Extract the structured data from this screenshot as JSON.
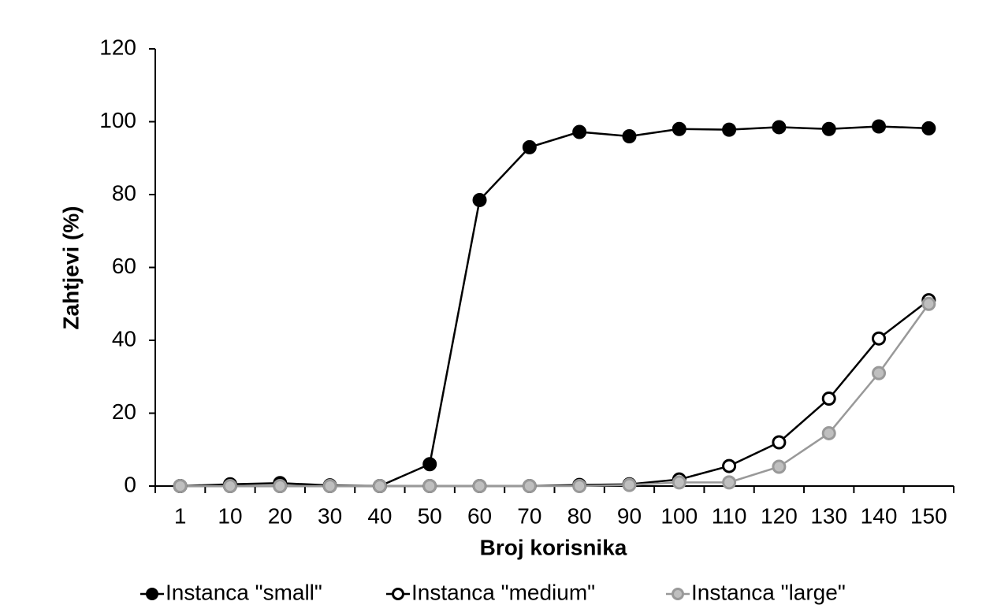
{
  "chart_data": {
    "type": "line",
    "x_label": "Broj korisnika",
    "y_label": "Zahtjevi (%)",
    "categories": [
      "1",
      "10",
      "20",
      "30",
      "40",
      "50",
      "60",
      "70",
      "80",
      "90",
      "100",
      "110",
      "120",
      "130",
      "140",
      "150"
    ],
    "series": [
      {
        "name": "Instanca \"small\"",
        "color": "#000000",
        "marker_fill": "#000000",
        "values": [
          0,
          0.5,
          0.8,
          0.2,
          0,
          6,
          78.5,
          93,
          97.2,
          96,
          98,
          97.8,
          98.5,
          98,
          98.7,
          98.2
        ]
      },
      {
        "name": "Instanca \"medium\"",
        "color": "#000000",
        "marker_fill": "#ffffff",
        "values": [
          0,
          0,
          0,
          0,
          0,
          0,
          0,
          0,
          0.3,
          0.5,
          1.8,
          5.5,
          12,
          24,
          40.5,
          51
        ]
      },
      {
        "name": "Instanca \"large\"",
        "color": "#999999",
        "marker_fill": "#bfbfbf",
        "values": [
          0,
          0,
          0,
          0,
          0,
          0,
          0,
          0,
          0,
          0.3,
          1,
          1,
          5.3,
          14.5,
          31,
          50
        ]
      }
    ],
    "ylim": [
      0,
      120
    ],
    "yticks": [
      0,
      20,
      40,
      60,
      80,
      100,
      120
    ]
  }
}
